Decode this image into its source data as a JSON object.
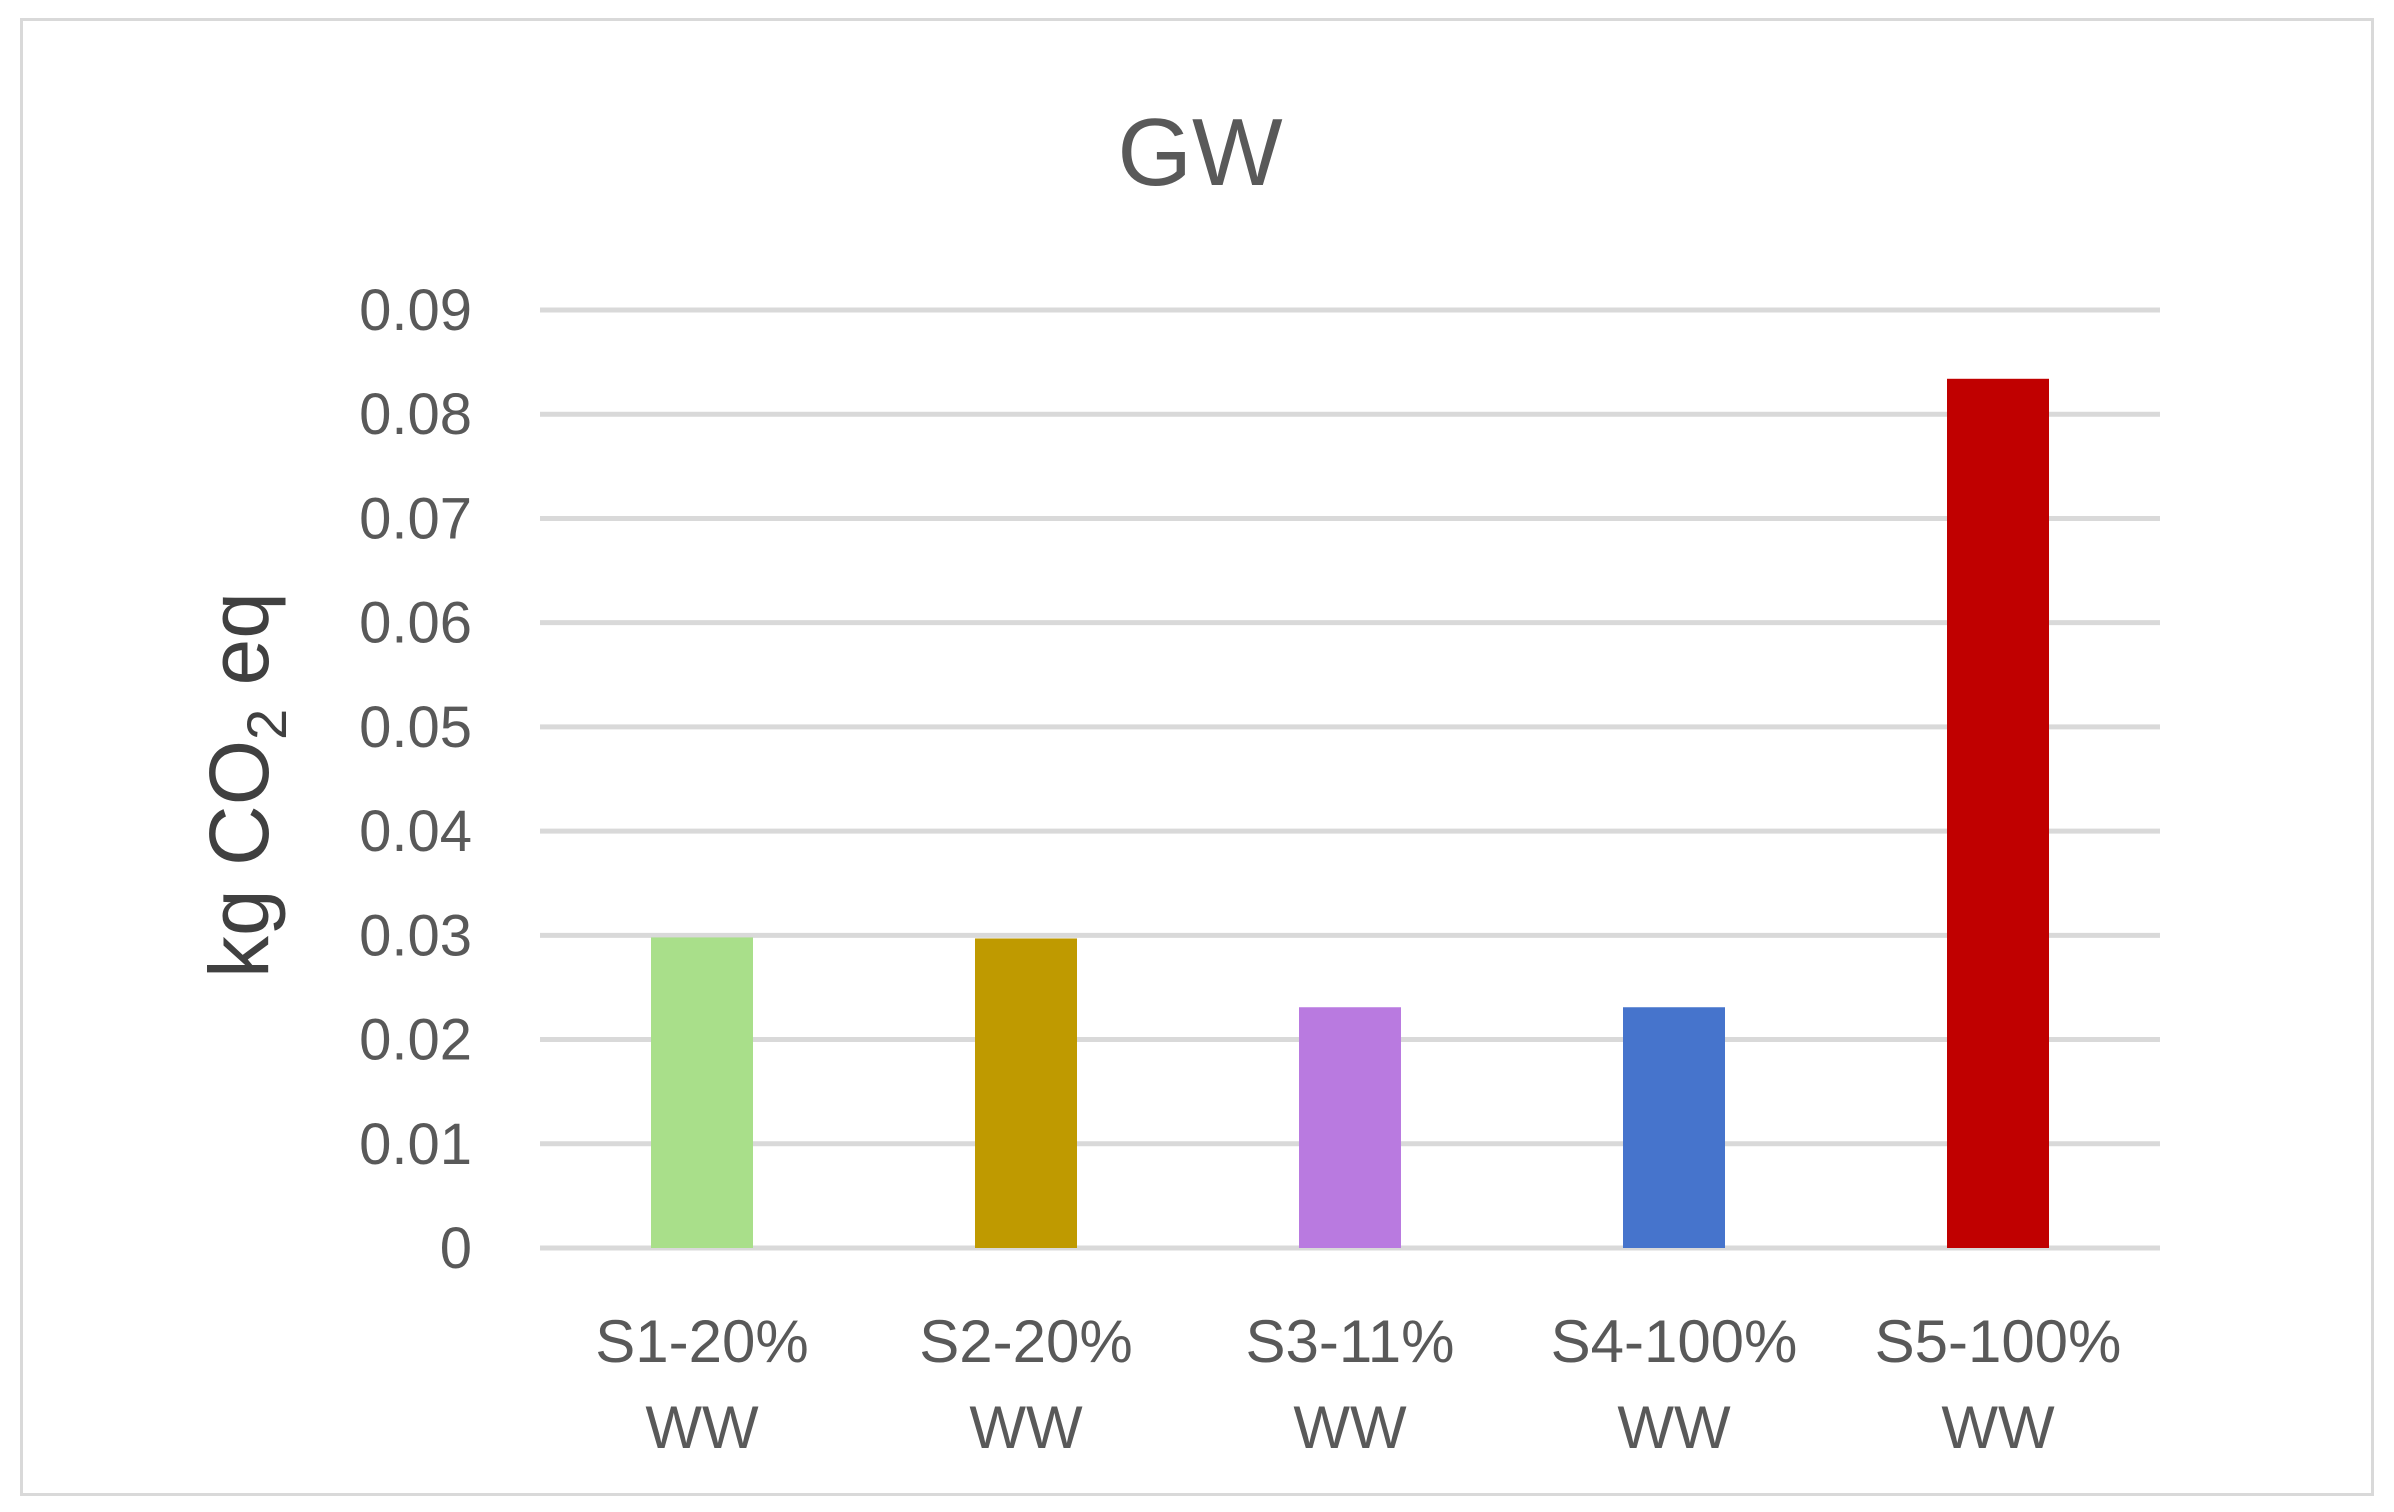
{
  "chart_data": {
    "type": "bar",
    "title": "GW",
    "ylabel": {
      "main": "kg CO",
      "subscript": "2",
      "suffix": " eq"
    },
    "xlabel": "",
    "categories": [
      {
        "line1": "S1-20%",
        "line2": "WW"
      },
      {
        "line1": "S2-20%",
        "line2": "WW"
      },
      {
        "line1": "S3-11%",
        "line2": "WW"
      },
      {
        "line1": "S4-100%",
        "line2": "WW"
      },
      {
        "line1": "S5-100%",
        "line2": "WW"
      }
    ],
    "values": [
      0.0298,
      0.0297,
      0.0231,
      0.0231,
      0.0834
    ],
    "colors": [
      "#a9df8a",
      "#bf9a00",
      "#b97ae0",
      "#4674cc",
      "#c00000"
    ],
    "ylim": [
      0,
      0.09
    ],
    "yticks": [
      "0",
      "0.01",
      "0.02",
      "0.03",
      "0.04",
      "0.05",
      "0.06",
      "0.07",
      "0.08",
      "0.09"
    ],
    "grid": true,
    "gridColor": "#d9d9d9",
    "legend": "none"
  }
}
